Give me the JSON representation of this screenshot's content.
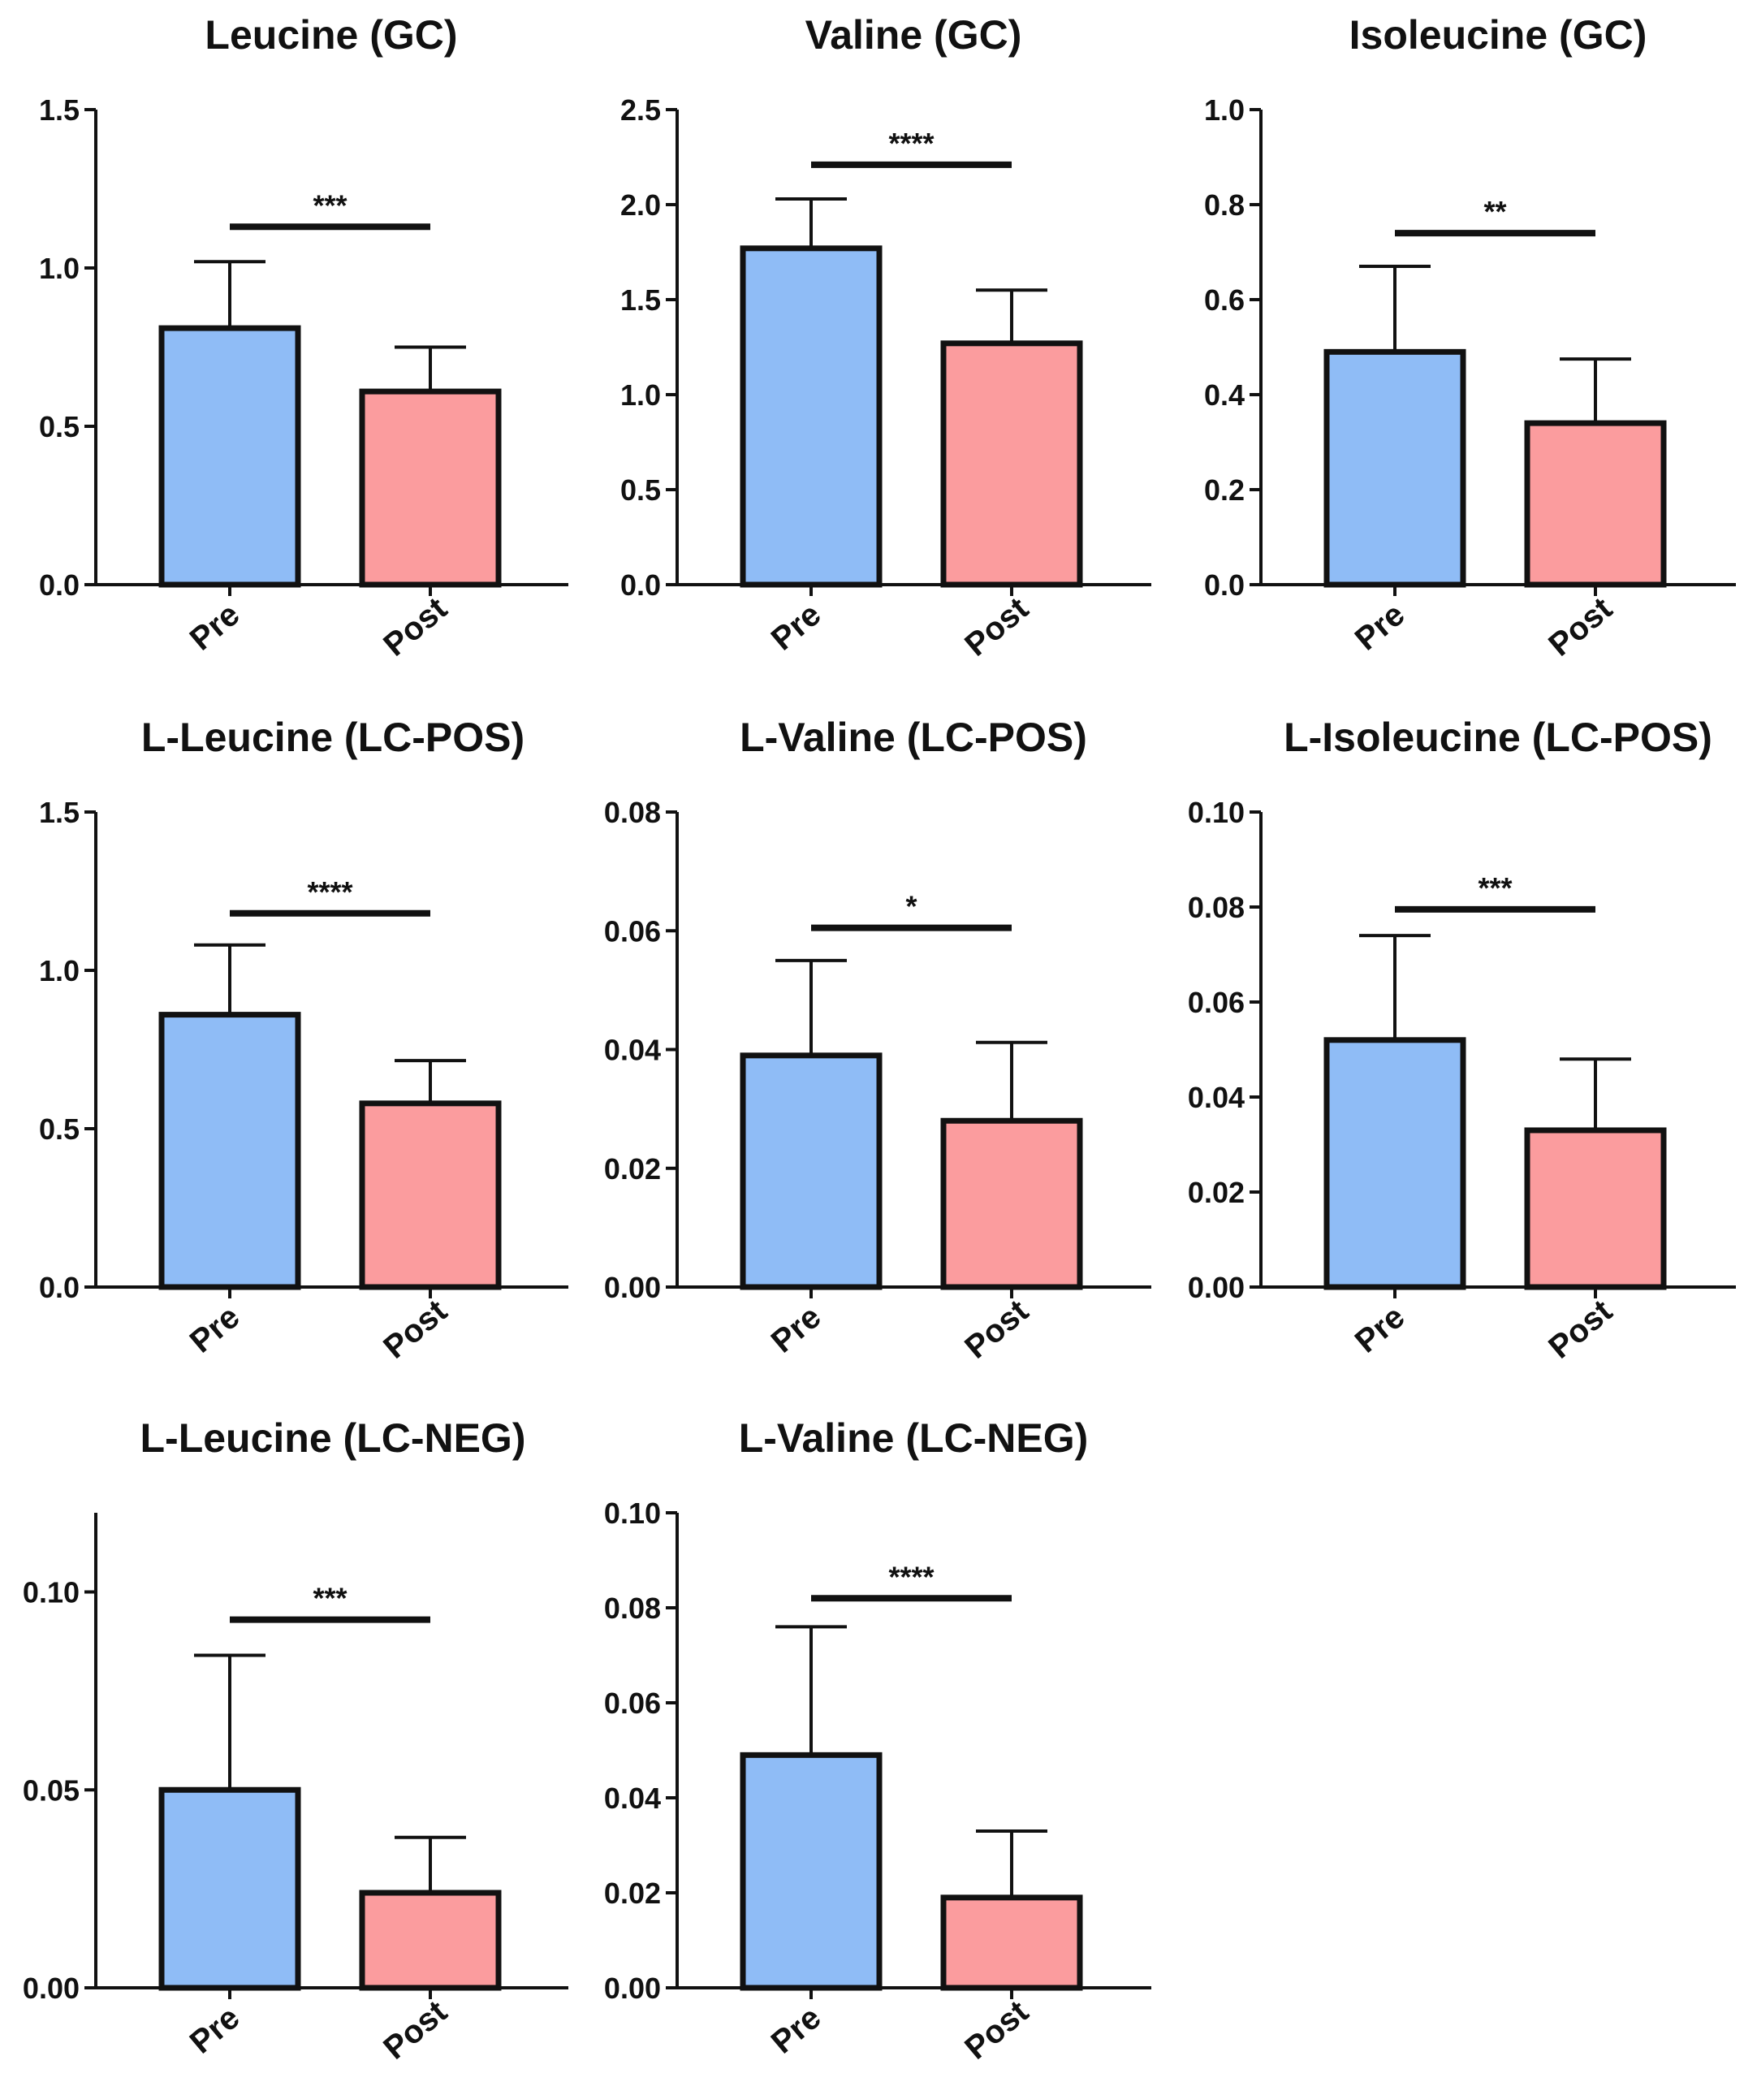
{
  "colors": {
    "pre": "#8fbcf6",
    "post": "#fb9c9e",
    "outline": "#111111"
  },
  "chart_data": [
    {
      "type": "bar",
      "title": "Leucine (GC)",
      "categories": [
        "Pre",
        "Post"
      ],
      "values": [
        0.81,
        0.61
      ],
      "errors": [
        0.21,
        0.14
      ],
      "ylim": [
        0,
        1.5
      ],
      "yticks": [
        0.0,
        0.5,
        1.0,
        1.5
      ],
      "tick_labels": [
        "0.0",
        "0.5",
        "1.0",
        "1.5"
      ],
      "significance": "***",
      "sig_y": 1.13,
      "xlabel": "",
      "ylabel": ""
    },
    {
      "type": "bar",
      "title": "Valine (GC)",
      "categories": [
        "Pre",
        "Post"
      ],
      "values": [
        1.77,
        1.27
      ],
      "errors": [
        0.26,
        0.28
      ],
      "ylim": [
        0,
        2.5
      ],
      "yticks": [
        0.0,
        0.5,
        1.0,
        1.5,
        2.0,
        2.5
      ],
      "tick_labels": [
        "0.0",
        "0.5",
        "1.0",
        "1.5",
        "2.0",
        "2.5"
      ],
      "significance": "****",
      "sig_y": 2.21,
      "xlabel": "",
      "ylabel": ""
    },
    {
      "type": "bar",
      "title": "Isoleucine (GC)",
      "categories": [
        "Pre",
        "Post"
      ],
      "values": [
        0.49,
        0.34
      ],
      "errors": [
        0.18,
        0.135
      ],
      "ylim": [
        0,
        1.0
      ],
      "yticks": [
        0.0,
        0.2,
        0.4,
        0.6,
        0.8,
        1.0
      ],
      "tick_labels": [
        "0.0",
        "0.2",
        "0.4",
        "0.6",
        "0.8",
        "1.0"
      ],
      "significance": "**",
      "sig_y": 0.74,
      "xlabel": "",
      "ylabel": ""
    },
    {
      "type": "bar",
      "title": "L-Leucine (LC-POS)",
      "categories": [
        "Pre",
        "Post"
      ],
      "values": [
        0.86,
        0.58
      ],
      "errors": [
        0.22,
        0.135
      ],
      "ylim": [
        0,
        1.5
      ],
      "yticks": [
        0.0,
        0.5,
        1.0,
        1.5
      ],
      "tick_labels": [
        "0.0",
        "0.5",
        "1.0",
        "1.5"
      ],
      "significance": "****",
      "sig_y": 1.18,
      "xlabel": "",
      "ylabel": ""
    },
    {
      "type": "bar",
      "title": "L-Valine (LC-POS)",
      "categories": [
        "Pre",
        "Post"
      ],
      "values": [
        0.039,
        0.028
      ],
      "errors": [
        0.016,
        0.0132
      ],
      "ylim": [
        0,
        0.08
      ],
      "yticks": [
        0.0,
        0.02,
        0.04,
        0.06,
        0.08
      ],
      "tick_labels": [
        "0.00",
        "0.02",
        "0.04",
        "0.06",
        "0.08"
      ],
      "significance": "*",
      "sig_y": 0.0605,
      "xlabel": "",
      "ylabel": ""
    },
    {
      "type": "bar",
      "title": "L-Isoleucine (LC-POS)",
      "categories": [
        "Pre",
        "Post"
      ],
      "values": [
        0.052,
        0.033
      ],
      "errors": [
        0.022,
        0.015
      ],
      "ylim": [
        0,
        0.1
      ],
      "yticks": [
        0.0,
        0.02,
        0.04,
        0.06,
        0.08,
        0.1
      ],
      "tick_labels": [
        "0.00",
        "0.02",
        "0.04",
        "0.06",
        "0.08",
        "0.10"
      ],
      "significance": "***",
      "sig_y": 0.0795,
      "xlabel": "",
      "ylabel": ""
    },
    {
      "type": "bar",
      "title": "L-Leucine (LC-NEG)",
      "categories": [
        "Pre",
        "Post"
      ],
      "values": [
        0.05,
        0.024
      ],
      "errors": [
        0.034,
        0.014
      ],
      "ylim": [
        0,
        0.12
      ],
      "yticks": [
        0.0,
        0.05,
        0.1
      ],
      "tick_labels": [
        "0.00",
        "0.05",
        "0.10"
      ],
      "significance": "***",
      "sig_y": 0.093,
      "xlabel": "",
      "ylabel": ""
    },
    {
      "type": "bar",
      "title": "L-Valine (LC-NEG)",
      "categories": [
        "Pre",
        "Post"
      ],
      "values": [
        0.049,
        0.019
      ],
      "errors": [
        0.027,
        0.014
      ],
      "ylim": [
        0,
        0.1
      ],
      "yticks": [
        0.0,
        0.02,
        0.04,
        0.06,
        0.08,
        0.1
      ],
      "tick_labels": [
        "0.00",
        "0.02",
        "0.04",
        "0.06",
        "0.08",
        "0.10"
      ],
      "significance": "****",
      "sig_y": 0.082,
      "xlabel": "",
      "ylabel": ""
    }
  ]
}
